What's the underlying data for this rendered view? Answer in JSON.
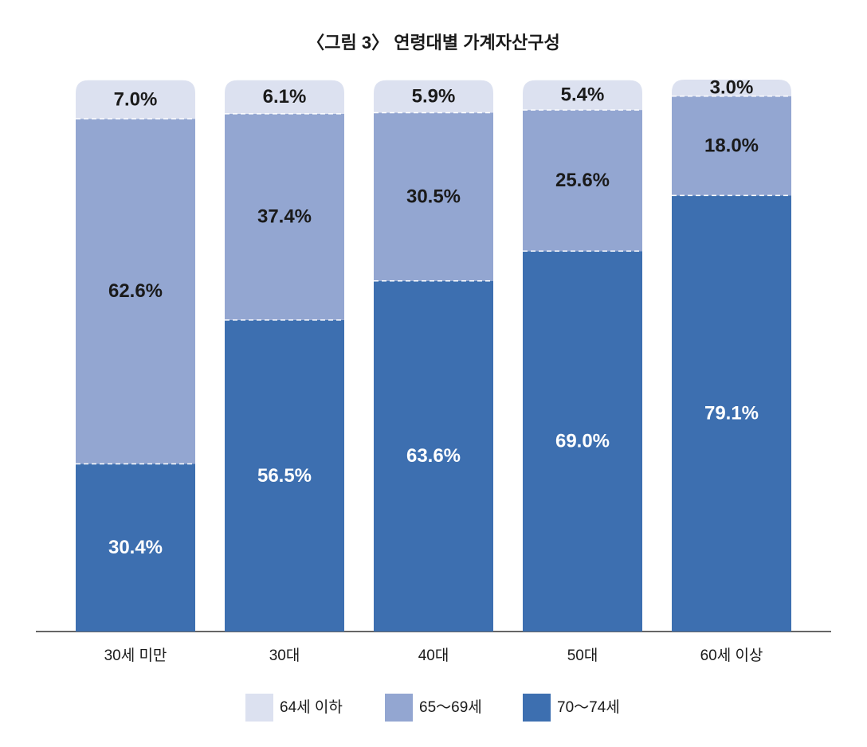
{
  "chart_data": {
    "type": "stacked-bar",
    "title": "〈그림 3〉 연령대별 가계자산구성",
    "categories": [
      "30세 미만",
      "30대",
      "40대",
      "50대",
      "60세 이상"
    ],
    "series": [
      {
        "name": "64세 이하",
        "color": "#dce1f0",
        "label_color": "#1a1a1a",
        "values": [
          7.0,
          6.1,
          5.9,
          5.4,
          3.0
        ],
        "value_labels": [
          "7.0%",
          "6.1%",
          "5.9%",
          "5.4%",
          "3.0%"
        ]
      },
      {
        "name": "65～69세",
        "color": "#93a6d1",
        "label_color": "#1a1a1a",
        "values": [
          62.6,
          37.4,
          30.5,
          25.6,
          18.0
        ],
        "value_labels": [
          "62.6%",
          "37.4%",
          "30.5%",
          "25.6%",
          "18.0%"
        ]
      },
      {
        "name": "70～74세",
        "color": "#3d6fb0",
        "label_color": "#ffffff",
        "values": [
          30.4,
          56.5,
          63.6,
          69.0,
          79.1
        ],
        "value_labels": [
          "30.4%",
          "56.5%",
          "63.6%",
          "69.0%",
          "79.1%"
        ]
      }
    ]
  }
}
